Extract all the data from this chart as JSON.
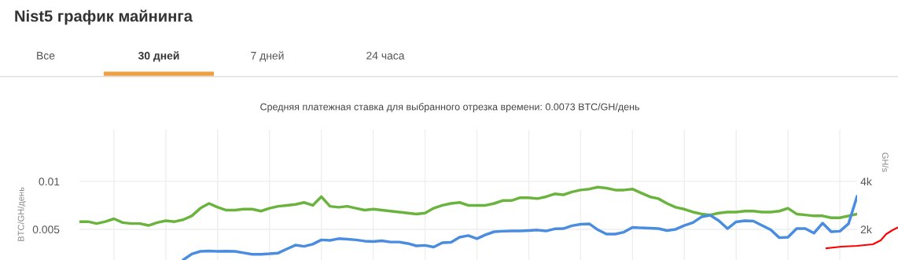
{
  "chart_data": {
    "type": "line",
    "title": "Nist5 график майнинга",
    "subtitle": "Средняя платежная ставка для выбранного отрезка времени: 0.0073 BTC/GH/день",
    "annotations": [
      "Все",
      "30 дней",
      "7 дней",
      "24 часа"
    ],
    "ylabel": "BTC/GH/день",
    "y2label": "GH/s",
    "categories": [
      null,
      null,
      null,
      null,
      null,
      null,
      null,
      null,
      null,
      null,
      null,
      null,
      null,
      null,
      null,
      null,
      null,
      null,
      null,
      null,
      null,
      null,
      null,
      null,
      null,
      null,
      null,
      null,
      null,
      null,
      null,
      null,
      null,
      null,
      null,
      null,
      null,
      null,
      null,
      null,
      null,
      null,
      null,
      null,
      null,
      null,
      null,
      null,
      null,
      null,
      null,
      null,
      null,
      null,
      null,
      null,
      null,
      null,
      null,
      null,
      null,
      null,
      null,
      null,
      null,
      null,
      null,
      null,
      null,
      null,
      null,
      null,
      null,
      null,
      null,
      null,
      null,
      null,
      null,
      null,
      null,
      null,
      null,
      null,
      null,
      null,
      null,
      null,
      null,
      null,
      null
    ],
    "ylim": [
      0.0018,
      0.0154
    ],
    "yticks": [
      0.005,
      0.01
    ],
    "y2lim": [
      720,
      6160
    ],
    "y2ticks": [
      {
        "value": 2000,
        "label": "2k"
      },
      {
        "value": 4000,
        "label": "4k"
      }
    ],
    "grid": true,
    "tick_labels": "y",
    "series": [
      {
        "color": "#6ab43e",
        "values": [
          0.0058,
          0.0058,
          0.0056,
          0.0058,
          0.0061,
          0.0057,
          0.0056,
          0.0056,
          0.0054,
          0.0057,
          0.0059,
          0.0058,
          0.006,
          0.0064,
          0.0072,
          0.0077,
          0.0073,
          0.007,
          0.007,
          0.0071,
          0.0071,
          0.0069,
          0.0072,
          0.0074,
          0.0075,
          0.0076,
          0.0078,
          0.0075,
          0.0084,
          0.0074,
          0.0073,
          0.0074,
          0.0072,
          0.007,
          0.0071,
          0.007,
          0.0069,
          0.0068,
          0.0067,
          0.0066,
          0.0067,
          0.0072,
          0.0075,
          0.0077,
          0.0078,
          0.0075,
          0.0075,
          0.0075,
          0.0077,
          0.008,
          0.008,
          0.0083,
          0.0083,
          0.0082,
          0.0084,
          0.0087,
          0.0086,
          0.0089,
          0.0091,
          0.0092,
          0.0094,
          0.0093,
          0.0091,
          0.0091,
          0.0092,
          0.0088,
          0.0084,
          0.0082,
          0.0077,
          0.0073,
          0.0071,
          0.0068,
          0.0066,
          0.0065,
          0.0067,
          0.0068,
          0.0068,
          0.0069,
          0.0069,
          0.0068,
          0.0068,
          0.0069,
          0.0072,
          0.0066,
          0.0065,
          0.0064,
          0.0064,
          0.0062,
          0.0062,
          0.0064,
          0.0066
        ]
      },
      {
        "color": "#4a8de0",
        "axis": "y2",
        "values": [
          null,
          null,
          null,
          null,
          null,
          null,
          null,
          null,
          null,
          null,
          null,
          null,
          720,
          970,
          1080,
          1100,
          1080,
          1090,
          1080,
          1020,
          960,
          960,
          980,
          1010,
          1180,
          1340,
          1290,
          1380,
          1560,
          1540,
          1610,
          1590,
          1560,
          1510,
          1490,
          1520,
          1470,
          1470,
          1410,
          1310,
          1330,
          1260,
          1440,
          1460,
          1670,
          1740,
          1610,
          1770,
          1900,
          1920,
          1930,
          1930,
          1950,
          1970,
          1930,
          2020,
          2030,
          2150,
          2210,
          2230,
          1980,
          1800,
          1800,
          1880,
          2080,
          2060,
          2050,
          2030,
          1950,
          2000,
          2160,
          2280,
          2520,
          2590,
          2360,
          2030,
          2310,
          2360,
          2340,
          2160,
          1980,
          1650,
          1670,
          2030,
          2030,
          1840,
          2260,
          1900,
          1920,
          2230,
          3380
        ]
      }
    ]
  }
}
